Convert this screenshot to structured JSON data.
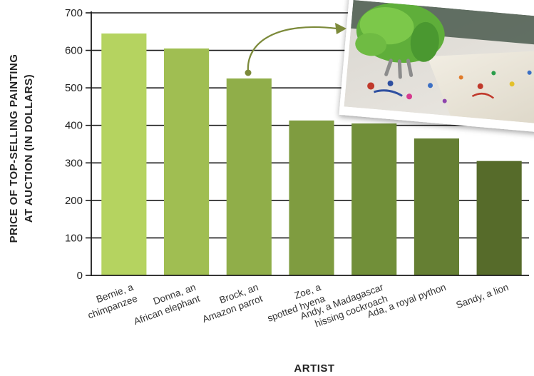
{
  "chart_data": {
    "type": "bar",
    "title": "",
    "xlabel": "ARTIST",
    "ylabel_lines": [
      "PRICE OF TOP-SELLING PAINTING",
      "AT AUCTION (IN DOLLARS)"
    ],
    "ylim": [
      0,
      700
    ],
    "yticks": [
      0,
      100,
      200,
      300,
      400,
      500,
      600,
      700
    ],
    "grid": true,
    "categories": [
      [
        "Bernie, a",
        "chimpanzee"
      ],
      [
        "Donna, an",
        "African elephant"
      ],
      [
        "Brock, an",
        "Amazon parrot"
      ],
      [
        "Zoe, a",
        "spotted hyena"
      ],
      [
        "Andy, a Madagascar",
        "hissing cockroach"
      ],
      [
        "Ada, a royal python"
      ],
      [
        "Sandy, a lion"
      ]
    ],
    "values": [
      645,
      605,
      525,
      413,
      405,
      365,
      305
    ],
    "bar_colors": [
      "#b5d360",
      "#a0be52",
      "#90ae49",
      "#7f9c40",
      "#718f39",
      "#657f33",
      "#566b2a"
    ],
    "annotation": {
      "type": "arrow",
      "from_category_index": 2,
      "to": "inset-photo",
      "color": "#7c8a3a"
    },
    "inset_image": "painting-parrot-photo"
  }
}
